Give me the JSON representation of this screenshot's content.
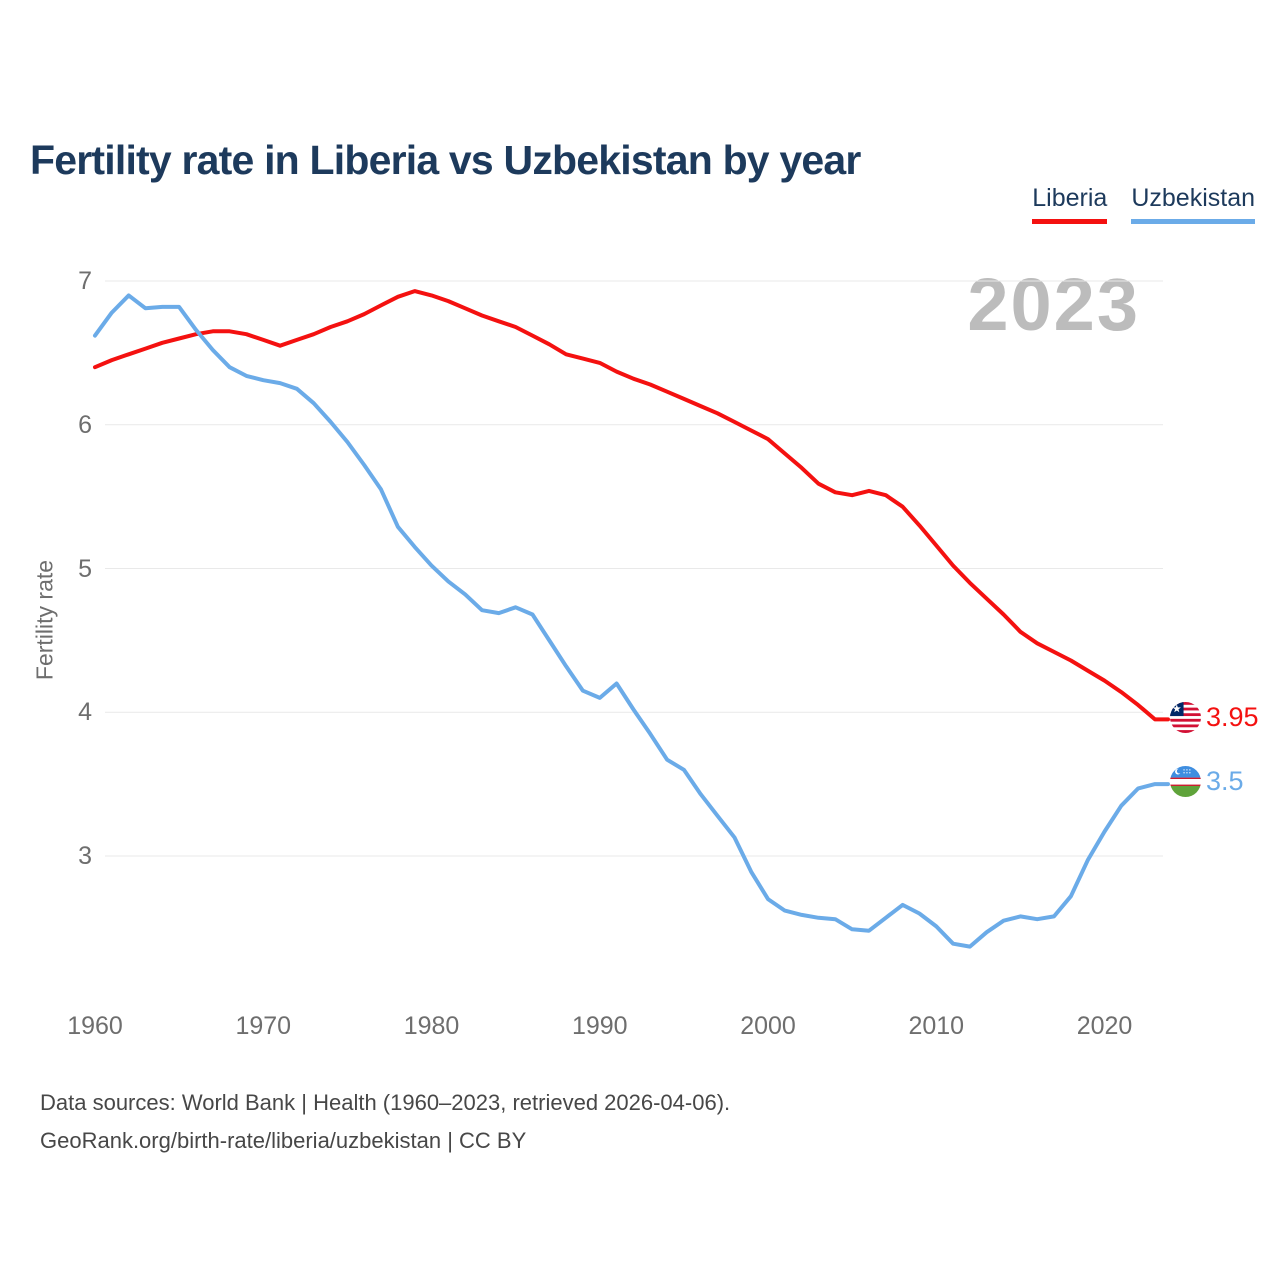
{
  "title": "Fertility rate in Liberia vs Uzbekistan by year",
  "legend": {
    "items": [
      {
        "label": "Liberia",
        "color": "#f41110"
      },
      {
        "label": "Uzbekistan",
        "color": "#6babe8"
      }
    ]
  },
  "watermark": "2023",
  "y_axis": {
    "label": "Fertility rate",
    "ticks": [
      7,
      6,
      5,
      4,
      3
    ]
  },
  "x_axis": {
    "ticks": [
      1960,
      1970,
      1980,
      1990,
      2000,
      2010,
      2020
    ]
  },
  "end_labels": [
    {
      "series": "Liberia",
      "value": "3.95",
      "color": "#f41110",
      "icon": "liberia-flag-icon"
    },
    {
      "series": "Uzbekistan",
      "value": "3.5",
      "color": "#6babe8",
      "icon": "uzbekistan-flag-icon"
    }
  ],
  "footer": {
    "line1": "Data sources: World Bank | Health (1960–2023, retrieved 2026-04-06).",
    "line2": "GeoRank.org/birth-rate/liberia/uzbekistan | CC BY"
  },
  "chart_data": {
    "type": "line",
    "title": "Fertility rate in Liberia vs Uzbekistan by year",
    "xlabel": "year",
    "ylabel": "Fertility rate",
    "xlim": [
      1960,
      2023
    ],
    "ylim": [
      2.2,
      7
    ],
    "grid": "horizontal",
    "legend_position": "top-right",
    "x": [
      1960,
      1961,
      1962,
      1963,
      1964,
      1965,
      1966,
      1967,
      1968,
      1969,
      1970,
      1971,
      1972,
      1973,
      1974,
      1975,
      1976,
      1977,
      1978,
      1979,
      1980,
      1981,
      1982,
      1983,
      1984,
      1985,
      1986,
      1987,
      1988,
      1989,
      1990,
      1991,
      1992,
      1993,
      1994,
      1995,
      1996,
      1997,
      1998,
      1999,
      2000,
      2001,
      2002,
      2003,
      2004,
      2005,
      2006,
      2007,
      2008,
      2009,
      2010,
      2011,
      2012,
      2013,
      2014,
      2015,
      2016,
      2017,
      2018,
      2019,
      2020,
      2021,
      2022,
      2023
    ],
    "series": [
      {
        "name": "Liberia",
        "color": "#f41110",
        "values": [
          6.4,
          6.45,
          6.49,
          6.53,
          6.57,
          6.6,
          6.63,
          6.65,
          6.65,
          6.63,
          6.59,
          6.55,
          6.59,
          6.63,
          6.68,
          6.72,
          6.77,
          6.83,
          6.89,
          6.93,
          6.9,
          6.86,
          6.81,
          6.76,
          6.72,
          6.68,
          6.62,
          6.56,
          6.49,
          6.46,
          6.43,
          6.37,
          6.32,
          6.28,
          6.23,
          6.18,
          6.13,
          6.08,
          6.02,
          5.96,
          5.9,
          5.8,
          5.7,
          5.59,
          5.53,
          5.51,
          5.54,
          5.51,
          5.43,
          5.3,
          5.16,
          5.02,
          4.9,
          4.79,
          4.68,
          4.56,
          4.48,
          4.42,
          4.36,
          4.29,
          4.22,
          4.14,
          4.05,
          3.95
        ],
        "end_value": 3.95
      },
      {
        "name": "Uzbekistan",
        "color": "#6babe8",
        "values": [
          6.62,
          6.78,
          6.9,
          6.81,
          6.82,
          6.82,
          6.66,
          6.52,
          6.4,
          6.34,
          6.31,
          6.29,
          6.25,
          6.15,
          6.02,
          5.88,
          5.72,
          5.55,
          5.29,
          5.15,
          5.02,
          4.91,
          4.82,
          4.71,
          4.69,
          4.73,
          4.68,
          4.5,
          4.32,
          4.15,
          4.1,
          4.2,
          4.02,
          3.85,
          3.67,
          3.6,
          3.43,
          3.28,
          3.13,
          2.89,
          2.7,
          2.62,
          2.59,
          2.57,
          2.56,
          2.49,
          2.48,
          2.57,
          2.66,
          2.6,
          2.51,
          2.39,
          2.37,
          2.47,
          2.55,
          2.58,
          2.56,
          2.58,
          2.72,
          2.97,
          3.17,
          3.35,
          3.47,
          3.5
        ],
        "end_value": 3.5
      }
    ]
  }
}
